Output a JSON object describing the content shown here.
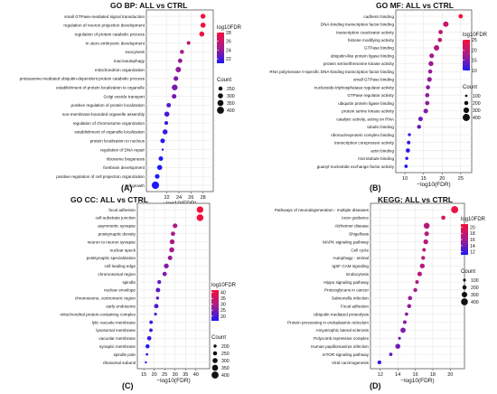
{
  "chart_data": [
    {
      "type": "scatter",
      "panel_label": "(A)",
      "title": "GO BP: ALL vs CTRL",
      "xlabel": "−log10(FDR)",
      "xlim": [
        19.5,
        28.8
      ],
      "xticks": [
        22,
        24,
        26,
        28
      ],
      "color_title": "log10FDR",
      "color_range": [
        21,
        28
      ],
      "color_ticks": [
        22,
        24,
        26,
        28
      ],
      "size_title": "Count",
      "size_range": [
        150,
        450
      ],
      "size_ticks": [
        250,
        300,
        350,
        400
      ],
      "points": [
        {
          "term": "small GTPase-mediated signal transduction",
          "x": 28.0,
          "count": 290
        },
        {
          "term": "regulation of neuron projection development",
          "x": 28.0,
          "count": 300
        },
        {
          "term": "regulation of protein catabolic process",
          "x": 27.8,
          "count": 300
        },
        {
          "term": "in utero embryonic development",
          "x": 25.6,
          "count": 230
        },
        {
          "term": "exocytosis",
          "x": 24.5,
          "count": 250
        },
        {
          "term": "macroautophagy",
          "x": 24.2,
          "count": 270
        },
        {
          "term": "mitochondrion organization",
          "x": 23.9,
          "count": 320
        },
        {
          "term": "proteasome-mediated ubiquitin-dependent protein catabolic process",
          "x": 23.5,
          "count": 280
        },
        {
          "term": "establishment of protein localization to organelle",
          "x": 23.3,
          "count": 340
        },
        {
          "term": "Golgi vesicle transport",
          "x": 23.2,
          "count": 280
        },
        {
          "term": "positive regulation of protein localization",
          "x": 22.3,
          "count": 270
        },
        {
          "term": "non-membrane-bounded organelle assembly",
          "x": 22.0,
          "count": 300
        },
        {
          "term": "regulation of chromosome organization",
          "x": 21.9,
          "count": 230
        },
        {
          "term": "establishment of organelle localization",
          "x": 21.7,
          "count": 300
        },
        {
          "term": "protein localization to nucleus",
          "x": 21.3,
          "count": 280
        },
        {
          "term": "regulation of DNA repair",
          "x": 21.3,
          "count": 150
        },
        {
          "term": "ribosome biogenesis",
          "x": 21.0,
          "count": 270
        },
        {
          "term": "forebrain development",
          "x": 20.8,
          "count": 300
        },
        {
          "term": "positive regulation of cell projection organization",
          "x": 20.4,
          "count": 280
        },
        {
          "term": "cell growth",
          "x": 20.1,
          "count": 420
        }
      ]
    },
    {
      "type": "scatter",
      "panel_label": "(B)",
      "title": "GO MF: ALL vs CTRL",
      "xlabel": "−log10(FDR)",
      "xlim": [
        9,
        26.5
      ],
      "xticks": [
        10,
        15,
        20,
        25
      ],
      "color_title": "log10FDR",
      "color_range": [
        10,
        25
      ],
      "color_ticks": [
        10,
        15,
        20,
        25
      ],
      "size_title": "Count",
      "size_range": [
        80,
        450
      ],
      "size_ticks": [
        100,
        200,
        300,
        400
      ],
      "points": [
        {
          "term": "cadherin binding",
          "x": 25.0,
          "count": 220
        },
        {
          "term": "DNA-binding transcription factor binding",
          "x": 21.0,
          "count": 290
        },
        {
          "term": "transcription coactivator activity",
          "x": 19.6,
          "count": 220
        },
        {
          "term": "histone modifying activity",
          "x": 19.4,
          "count": 210
        },
        {
          "term": "GTPase binding",
          "x": 18.5,
          "count": 290
        },
        {
          "term": "ubiquitin-like protein ligase binding",
          "x": 17.2,
          "count": 240
        },
        {
          "term": "protein serine/threonine kinase activity",
          "x": 17.0,
          "count": 260
        },
        {
          "term": "RNA polymerase II-specific DNA-binding transcription factor binding",
          "x": 16.8,
          "count": 210
        },
        {
          "term": "small GTPase binding",
          "x": 16.6,
          "count": 240
        },
        {
          "term": "nucleoside-triphosphatase regulator activity",
          "x": 16.2,
          "count": 210
        },
        {
          "term": "GTPase regulator activity",
          "x": 16.0,
          "count": 210
        },
        {
          "term": "ubiquitin protein ligase binding",
          "x": 16.0,
          "count": 220
        },
        {
          "term": "protein serine kinase activity",
          "x": 15.6,
          "count": 240
        },
        {
          "term": "catalytic activity, acting on RNA",
          "x": 14.2,
          "count": 230
        },
        {
          "term": "tubulin binding",
          "x": 13.8,
          "count": 200
        },
        {
          "term": "ribonucleoprotein complex binding",
          "x": 11.2,
          "count": 140
        },
        {
          "term": "transcription corepressor activity",
          "x": 11.0,
          "count": 170
        },
        {
          "term": "actin binding",
          "x": 10.8,
          "count": 220
        },
        {
          "term": "microtubule binding",
          "x": 10.5,
          "count": 140
        },
        {
          "term": "guanyl-nucleotide exchange factor activity",
          "x": 10.3,
          "count": 160
        }
      ]
    },
    {
      "type": "scatter",
      "panel_label": "(C)",
      "title": "GO CC: ALL vs CTRL",
      "xlabel": "−log10(FDR)",
      "xlim": [
        14.5,
        44
      ],
      "xticks": [
        15,
        20,
        25,
        30,
        35,
        40
      ],
      "color_title": "log10FDR",
      "color_range": [
        16,
        42
      ],
      "color_ticks": [
        20,
        25,
        30,
        35,
        40
      ],
      "size_title": "Count",
      "size_range": [
        150,
        450
      ],
      "size_ticks": [
        200,
        250,
        300,
        350,
        400
      ],
      "points": [
        {
          "term": "focal adhesion",
          "x": 42.0,
          "count": 380
        },
        {
          "term": "cell-substrate junction",
          "x": 42.0,
          "count": 390
        },
        {
          "term": "asymmetric synapse",
          "x": 30.0,
          "count": 280
        },
        {
          "term": "postsynaptic density",
          "x": 29.0,
          "count": 260
        },
        {
          "term": "neuron to neuron synapse",
          "x": 28.6,
          "count": 290
        },
        {
          "term": "nuclear speck",
          "x": 28.4,
          "count": 300
        },
        {
          "term": "postsynaptic specialization",
          "x": 27.6,
          "count": 270
        },
        {
          "term": "cell leading edge",
          "x": 25.8,
          "count": 290
        },
        {
          "term": "chromosomal region",
          "x": 25.0,
          "count": 260
        },
        {
          "term": "spindle",
          "x": 22.4,
          "count": 240
        },
        {
          "term": "nuclear envelope",
          "x": 21.8,
          "count": 270
        },
        {
          "term": "chromosome, centromeric region",
          "x": 21.6,
          "count": 200
        },
        {
          "term": "early endosome",
          "x": 21.0,
          "count": 270
        },
        {
          "term": "mitochondrial protein-containing complex",
          "x": 20.6,
          "count": 190
        },
        {
          "term": "lytic vacuole membrane",
          "x": 18.5,
          "count": 220
        },
        {
          "term": "lysosomal membrane",
          "x": 18.4,
          "count": 220
        },
        {
          "term": "vacuolar membrane",
          "x": 17.6,
          "count": 260
        },
        {
          "term": "synaptic membrane",
          "x": 16.8,
          "count": 250
        },
        {
          "term": "spindle pole",
          "x": 16.5,
          "count": 170
        },
        {
          "term": "ribosomal subunit",
          "x": 16.0,
          "count": 150
        }
      ]
    },
    {
      "type": "scatter",
      "panel_label": "(D)",
      "title": "KEGG: ALL vs CTRL",
      "xlabel": "−log10(FDR)",
      "xlim": [
        11.5,
        21
      ],
      "xticks": [
        12,
        14,
        16,
        18,
        20
      ],
      "color_title": "log10FDR",
      "color_range": [
        11,
        21
      ],
      "color_ticks": [
        12,
        14,
        16,
        18,
        20
      ],
      "size_title": "Count",
      "size_range": [
        50,
        480
      ],
      "size_ticks": [
        100,
        200,
        300,
        400
      ],
      "points": [
        {
          "term": "Pathways of neurodegeneration - multiple diseases",
          "x": 20.5,
          "count": 420
        },
        {
          "term": "Axon guidance",
          "x": 19.2,
          "count": 200
        },
        {
          "term": "Alzheimer disease",
          "x": 17.3,
          "count": 330
        },
        {
          "term": "Shigellosis",
          "x": 17.3,
          "count": 230
        },
        {
          "term": "MAPK signaling pathway",
          "x": 17.2,
          "count": 250
        },
        {
          "term": "Cell cycle",
          "x": 17.0,
          "count": 150
        },
        {
          "term": "Autophagy - animal",
          "x": 16.9,
          "count": 180
        },
        {
          "term": "IgSF CAM signaling",
          "x": 16.8,
          "count": 250
        },
        {
          "term": "Endocytosis",
          "x": 16.5,
          "count": 230
        },
        {
          "term": "Hippo signaling pathway",
          "x": 16.2,
          "count": 170
        },
        {
          "term": "Proteoglycans in cancer",
          "x": 16.0,
          "count": 180
        },
        {
          "term": "Salmonella infection",
          "x": 15.4,
          "count": 200
        },
        {
          "term": "Focal adhesion",
          "x": 15.3,
          "count": 190
        },
        {
          "term": "Ubiquitin mediated proteolysis",
          "x": 15.0,
          "count": 140
        },
        {
          "term": "Protein processing in endoplasmic reticulum",
          "x": 14.8,
          "count": 160
        },
        {
          "term": "Amyotrophic lateral sclerosis",
          "x": 14.6,
          "count": 280
        },
        {
          "term": "Polycomb repressive complex",
          "x": 14.2,
          "count": 100
        },
        {
          "term": "Human papillomavirus infection",
          "x": 14.0,
          "count": 260
        },
        {
          "term": "mTOR signaling pathway",
          "x": 13.2,
          "count": 140
        },
        {
          "term": "Viral carcinogenesis",
          "x": 11.9,
          "count": 180
        }
      ]
    }
  ]
}
